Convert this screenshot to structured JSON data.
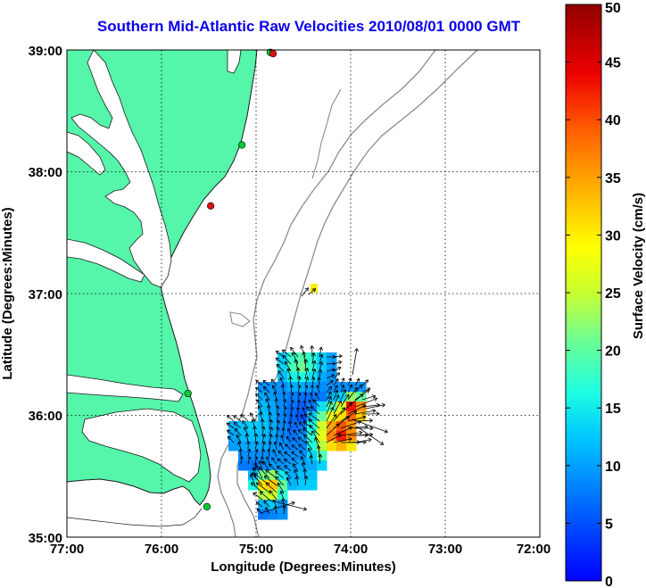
{
  "title": "Southern Mid-Atlantic Raw Velocities 2010/08/01 0000 GMT",
  "axes": {
    "xlabel": "Longitude (Degrees:Minutes)",
    "ylabel": "Latitude (Degrees:Minutes)",
    "xticks": [
      "77:00",
      "76:00",
      "75:00",
      "74:00",
      "73:00",
      "72:00"
    ],
    "yticks": [
      "39:00",
      "38:00",
      "37:00",
      "36:00",
      "35:00"
    ]
  },
  "colorbar": {
    "label": "Surface Velocity (cm/s)",
    "ticks": [
      "0",
      "5",
      "10",
      "15",
      "20",
      "25",
      "30",
      "35",
      "40",
      "45",
      "50"
    ],
    "range": [
      0,
      50
    ]
  },
  "colors": {
    "land": "#55f5aa",
    "title": "#0b00e8",
    "bathymetry": "#8c8c8c",
    "station_green": "#00cc33",
    "station_red": "#dd1111"
  },
  "stations": [
    {
      "name": "green-station",
      "lon": -74.85,
      "lat": 38.98,
      "color": "green"
    },
    {
      "name": "red-station",
      "lon": -74.82,
      "lat": 38.97,
      "color": "red"
    },
    {
      "name": "green-station",
      "lon": -75.15,
      "lat": 38.22,
      "color": "green"
    },
    {
      "name": "red-station",
      "lon": -75.48,
      "lat": 37.72,
      "color": "red"
    },
    {
      "name": "green-station",
      "lon": -75.72,
      "lat": 36.18,
      "color": "green"
    },
    {
      "name": "green-station",
      "lon": -75.52,
      "lat": 35.25,
      "color": "green"
    }
  ]
}
